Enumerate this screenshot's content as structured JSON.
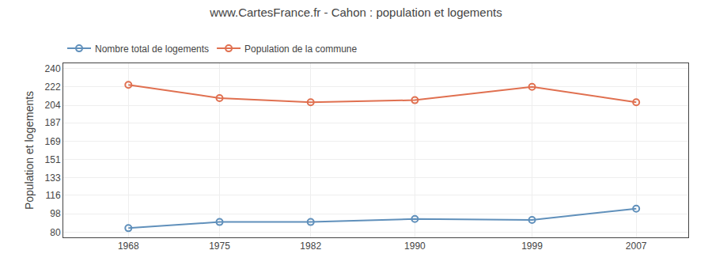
{
  "chart_data": {
    "type": "line",
    "title": "www.CartesFrance.fr - Cahon : population et logements",
    "y_label": "Population et logements",
    "x": [
      1968,
      1975,
      1982,
      1990,
      1999,
      2007
    ],
    "series": [
      {
        "name": "Population de la commune",
        "color": "#e07050",
        "marker": "circle",
        "values": [
          224,
          211,
          207,
          209,
          222,
          207
        ]
      },
      {
        "name": "Nombre total de logements",
        "color": "#6090bb",
        "marker": "circle",
        "values": [
          84,
          90,
          90,
          93,
          92,
          103
        ]
      }
    ],
    "xlim": [
      1963,
      2011
    ],
    "xticks": [
      1968,
      1975,
      1982,
      1990,
      1999,
      2007
    ],
    "ylim": [
      75,
      245
    ],
    "yticks": [
      80,
      98,
      116,
      133,
      151,
      169,
      187,
      204,
      222,
      240
    ],
    "grid": true,
    "legend": "upper left"
  }
}
